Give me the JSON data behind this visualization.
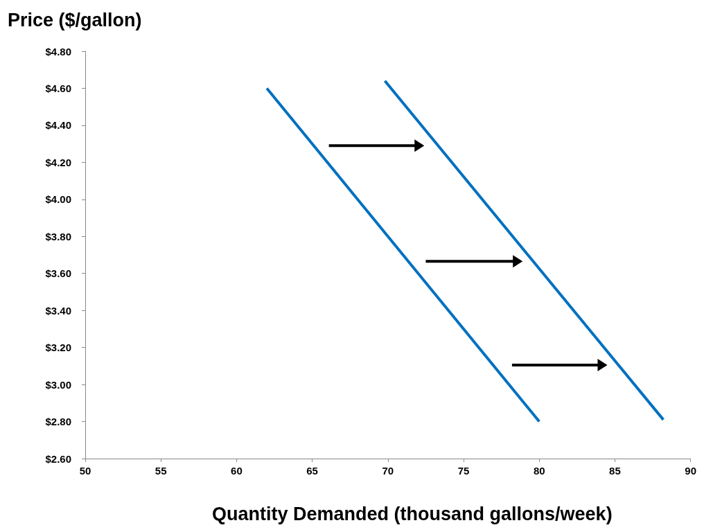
{
  "chart_data": {
    "type": "line",
    "xlabel": "Quantity Demanded (thousand gallons/week)",
    "ylabel": "Price ($/gallon)",
    "series": [
      {
        "color": "#0070c0",
        "x": [
          62,
          80
        ],
        "values": [
          4.6,
          2.8
        ]
      },
      {
        "color": "#0070c0",
        "x": [
          69.8,
          88.2
        ],
        "values": [
          4.64,
          2.81
        ]
      }
    ],
    "xlim": [
      50,
      90
    ],
    "xticks": [
      50,
      55,
      60,
      65,
      70,
      75,
      80,
      85,
      90
    ],
    "ylim": [
      2.6,
      4.8
    ],
    "yticks": [
      {
        "value": 2.6,
        "label": "$2.60"
      },
      {
        "value": 2.8,
        "label": "$2.80"
      },
      {
        "value": 3.0,
        "label": "$3.00"
      },
      {
        "value": 3.2,
        "label": "$3.20"
      },
      {
        "value": 3.4,
        "label": "$3.40"
      },
      {
        "value": 3.6,
        "label": "$3.60"
      },
      {
        "value": 3.8,
        "label": "$3.80"
      },
      {
        "value": 4.0,
        "label": "$4.00"
      },
      {
        "value": 4.2,
        "label": "$4.20"
      },
      {
        "value": 4.4,
        "label": "$4.40"
      },
      {
        "value": 4.6,
        "label": "$4.60"
      },
      {
        "value": 4.8,
        "label": "$4.80"
      }
    ],
    "grid": false,
    "marker": "none",
    "line_style": "solid"
  }
}
